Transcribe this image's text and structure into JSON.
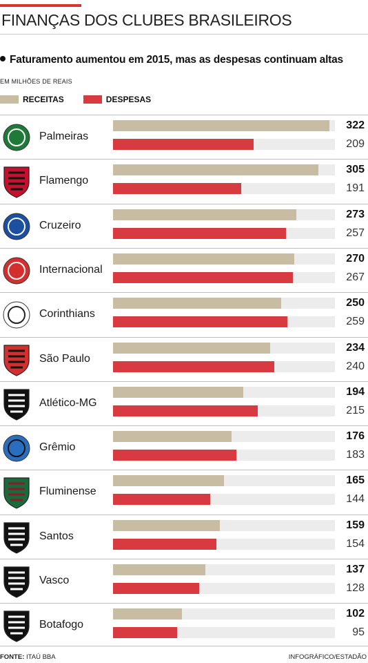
{
  "title": "FINANÇAS DOS CLUBES BRASILEIROS",
  "subtitle": "Faturamento aumentou em 2015, mas as despesas continuam altas",
  "unit": "EM MILHÕES DE REAIS",
  "colors": {
    "receitas": "#c8bda2",
    "despesas": "#d93a40",
    "accent": "#d9352c",
    "track": "#ececec"
  },
  "footer": {
    "source_label": "FONTE:",
    "source_value": "ITAÚ BBA",
    "credit": "INFOGRÁFICO/ESTADÃO"
  },
  "chart_data": {
    "type": "bar",
    "title": "FINANÇAS DOS CLUBES BRASILEIROS",
    "subtitle": "Faturamento aumentou em 2015, mas as despesas continuam altas",
    "unit": "EM MILHÕES DE REAIS",
    "orientation": "horizontal",
    "xlim": [
      0,
      330
    ],
    "grid": false,
    "legend_position": "top-left",
    "categories": [
      "Palmeiras",
      "Flamengo",
      "Cruzeiro",
      "Internacional",
      "Corinthians",
      "São Paulo",
      "Atlético-MG",
      "Grêmio",
      "Fluminense",
      "Santos",
      "Vasco",
      "Botafogo"
    ],
    "series": [
      {
        "name": "RECEITAS",
        "color": "#c8bda2",
        "values": [
          322,
          305,
          273,
          270,
          250,
          234,
          194,
          176,
          165,
          159,
          137,
          102
        ]
      },
      {
        "name": "DESPESAS",
        "color": "#d93a40",
        "values": [
          209,
          191,
          257,
          267,
          259,
          240,
          215,
          183,
          144,
          154,
          128,
          95
        ]
      }
    ]
  }
}
